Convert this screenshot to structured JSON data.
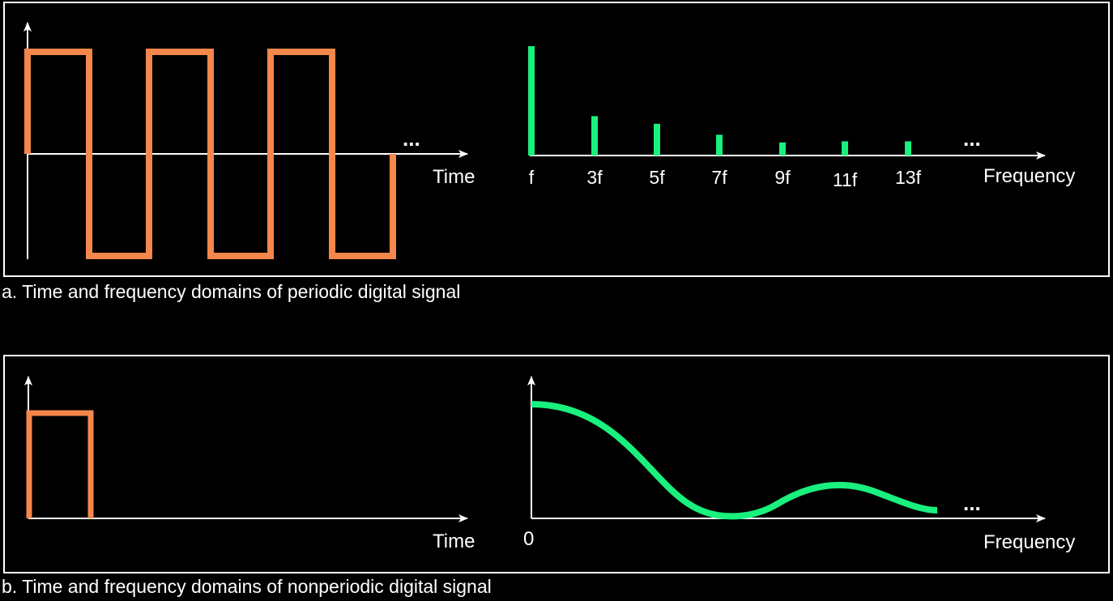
{
  "colors": {
    "time_signal": "#f4874b",
    "spectrum": "#19f07d",
    "axes": "#ffffff",
    "background": "#000000"
  },
  "panel_a": {
    "caption": "a. Time and frequency domains of periodic digital signal",
    "time_axis_label": "Time",
    "frequency_axis_label": "Frequency",
    "continuation": "...",
    "harmonics": [
      {
        "label": "f",
        "relative_amplitude": 1.0
      },
      {
        "label": "3f",
        "relative_amplitude": 0.36
      },
      {
        "label": "5f",
        "relative_amplitude": 0.29
      },
      {
        "label": "7f",
        "relative_amplitude": 0.19
      },
      {
        "label": "9f",
        "relative_amplitude": 0.12
      },
      {
        "label": "11f",
        "relative_amplitude": 0.13
      },
      {
        "label": "13f",
        "relative_amplitude": 0.13
      }
    ]
  },
  "panel_b": {
    "caption": "b. Time and frequency domains of nonperiodic digital signal",
    "time_axis_label": "Time",
    "frequency_axis_label": "Frequency",
    "origin_label": "0",
    "continuation": "..."
  }
}
